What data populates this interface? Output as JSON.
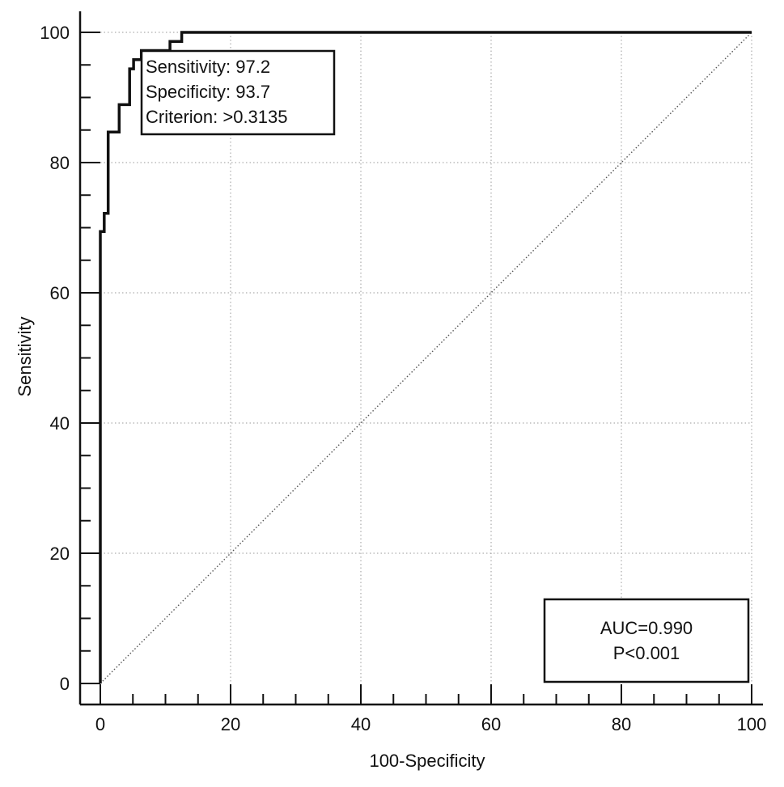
{
  "chart_data": {
    "type": "line",
    "title": "",
    "xlabel": "100-Specificity",
    "ylabel": "Sensitivity",
    "xlim": [
      0,
      100
    ],
    "ylim": [
      0,
      100
    ],
    "xticks": [
      "0",
      "20",
      "40",
      "60",
      "80",
      "100"
    ],
    "yticks": [
      "0",
      "20",
      "40",
      "60",
      "80",
      "100"
    ],
    "grid": true,
    "series": [
      {
        "style": "solid-thick",
        "x": [
          0,
          0,
          0.6,
          0.6,
          1.2,
          1.2,
          2.9,
          2.9,
          4.5,
          4.5,
          5.1,
          5.1,
          6.3,
          6.3,
          10.7,
          10.7,
          12.5,
          12.5,
          100
        ],
        "y": [
          0,
          69.4,
          69.4,
          72.2,
          72.2,
          84.7,
          84.7,
          88.9,
          88.9,
          94.4,
          94.4,
          95.8,
          95.8,
          97.2,
          97.2,
          98.6,
          98.6,
          100,
          100
        ]
      },
      {
        "style": "dotted-diagonal",
        "x": [
          0,
          100
        ],
        "y": [
          0,
          100
        ]
      }
    ],
    "annotations": {
      "sensitivity": "Sensitivity: 97.2",
      "specificity": "Specificity: 93.7",
      "criterion": "Criterion: >0.3135",
      "auc": "AUC=0.990",
      "p_value": "P<0.001"
    }
  }
}
